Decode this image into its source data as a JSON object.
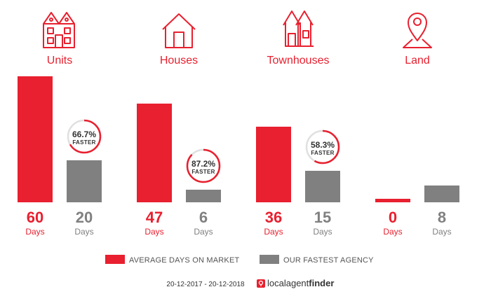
{
  "chart_data": {
    "type": "bar",
    "categories": [
      "Units",
      "Houses",
      "Townhouses",
      "Land"
    ],
    "series": [
      {
        "name": "AVERAGE DAYS ON MARKET",
        "values": [
          60,
          47,
          36,
          0
        ],
        "color": "#e8202f"
      },
      {
        "name": "OUR FASTEST AGENCY",
        "values": [
          20,
          6,
          15,
          8
        ],
        "color": "#808080"
      }
    ],
    "ylim": [
      0,
      60
    ],
    "days_unit_label": "Days",
    "faster": [
      {
        "category": "Units",
        "percent": "66.7%",
        "value": 66.7
      },
      {
        "category": "Houses",
        "percent": "87.2%",
        "value": 87.2
      },
      {
        "category": "Townhouses",
        "percent": "58.3%",
        "value": 58.3
      }
    ],
    "faster_label": "FASTER",
    "legend": {
      "placement": "bottom",
      "entries": [
        "AVERAGE DAYS ON MARKET",
        "OUR FASTEST AGENCY"
      ]
    }
  },
  "icons": [
    "units-icon",
    "house-icon",
    "townhouses-icon",
    "land-pin-icon"
  ],
  "footer": {
    "date_range": "20-12-2017 - 20-12-2018",
    "brand_part1": "localagent",
    "brand_part2": "finder"
  },
  "colors": {
    "accent": "#e8202f",
    "secondary": "#808080",
    "text_dark": "#333333"
  }
}
